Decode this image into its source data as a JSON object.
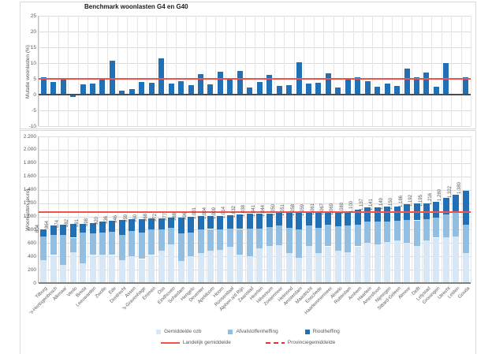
{
  "title": "Benchmark woonlasten G4 en G40",
  "chart_data": [
    {
      "type": "bar",
      "title": "Benchmark woonlasten G4 en G40",
      "ylabel": "Mutatie woonlasten  (%)",
      "ylim": [
        -10,
        25
      ],
      "yticks": [
        25,
        20,
        15,
        10,
        5,
        0,
        -5,
        -10
      ],
      "grid": true,
      "bar_color": "#2170b5",
      "categories": [
        "Tilburg",
        "'s-Hertogenbosch",
        "Alkmaar",
        "Venlo",
        "Breda",
        "Leeuwarden",
        "Zwolle",
        "Ede",
        "Dordrecht",
        "Assen",
        "'s-Gravenhage",
        "Emmen",
        "Oss",
        "Eindhoven",
        "Schiedam",
        "Hengelo",
        "Deventer",
        "Apeldoorn",
        "Hoorn",
        "Roosendaal",
        "Alphen a/d Rijn",
        "Zaanstad",
        "Heerlen",
        "Hilversum",
        "Zoetermeer",
        "Helmond",
        "Amsterdam",
        "Maastricht",
        "Enschede",
        "Haarlemmermeer",
        "Almelo",
        "Rotterdam",
        "Arnhem",
        "Haarlem",
        "Amersfoort",
        "Nijmegen",
        "Sittard-Geleen",
        "Almere",
        "Delft",
        "Lelystad",
        "Groningen",
        "Utrecht",
        "Leiden",
        "Gouda"
      ],
      "values": [
        5.4,
        4.0,
        4.8,
        -0.8,
        3.3,
        3.4,
        4.9,
        10.8,
        1.3,
        1.8,
        3.9,
        3.7,
        11.4,
        3.6,
        4.2,
        2.9,
        6.5,
        3.2,
        7.2,
        4.7,
        7.4,
        2.3,
        4.0,
        6.3,
        2.8,
        3.0,
        10.3,
        3.5,
        3.8,
        6.8,
        2.3,
        4.8,
        5.4,
        4.2,
        2.4,
        3.5,
        2.7,
        8.2,
        5.4,
        7.0,
        2.6,
        9.9,
        0,
        5.6
      ],
      "reference_lines": [
        {
          "name": "Landelijk gemiddelde",
          "value": 5.1,
          "style": "solid",
          "color": "#f0524c"
        },
        {
          "name": "Provinciegemiddelde",
          "value": 6.1,
          "style": "dashed",
          "color": "#e9302a"
        }
      ]
    },
    {
      "type": "bar",
      "stacked": true,
      "ylabel": "Woonlasten  (euro)",
      "ylim": [
        0,
        2200
      ],
      "ytick_labels": [
        "2.200",
        "2.000",
        "1.800",
        "1.600",
        "1.400",
        "1.200",
        "1.000",
        "800",
        "600",
        "400",
        "200",
        "0"
      ],
      "yticks": [
        2200,
        2000,
        1800,
        1600,
        1400,
        1200,
        1000,
        800,
        600,
        400,
        200,
        0
      ],
      "grid": true,
      "categories": [
        "Tilburg",
        "'s-Hertogenbosch",
        "Alkmaar",
        "Venlo",
        "Breda",
        "Leeuwarden",
        "Zwolle",
        "Ede",
        "Dordrecht",
        "Assen",
        "'s-Gravenhage",
        "Emmen",
        "Oss",
        "Eindhoven",
        "Schiedam",
        "Hengelo",
        "Deventer",
        "Apeldoorn",
        "Hoorn",
        "Roosendaal",
        "Alphen a/d Rijn",
        "Zaanstad",
        "Heerlen",
        "Hilversum",
        "Zoetermeer",
        "Helmond",
        "Amsterdam",
        "Maastricht",
        "Enschede",
        "Haarlemmermeer",
        "Almelo",
        "Rotterdam",
        "Arnhem",
        "Haarlem",
        "Amersfoort",
        "Nijmegen",
        "Sittard-Geleen",
        "Almere",
        "Delft",
        "Lelystad",
        "Groningen",
        "Utrecht",
        "Leiden",
        "Gouda"
      ],
      "totals": [
        804,
        864,
        874,
        882,
        891,
        898,
        920,
        936,
        946,
        959,
        960,
        968,
        972,
        977,
        988,
        996,
        1001,
        1004,
        1009,
        1014,
        1032,
        1038,
        1041,
        1044,
        1050,
        1051,
        1058,
        1059,
        1061,
        1067,
        1069,
        1080,
        1100,
        1137,
        1141,
        1149,
        1150,
        1186,
        1192,
        1195,
        1216,
        1280,
        1322,
        1380
      ],
      "total_labels": [
        "804",
        "864",
        "874",
        "882",
        "891",
        "898",
        "920",
        "936",
        "946",
        "959",
        "960",
        "968",
        "972",
        "977",
        "988",
        "996",
        "1.001",
        "1.004",
        "1.009",
        "1.014",
        "1.032",
        "1.038",
        "1.041",
        "1.044",
        "1.050",
        "1.051",
        "1.058",
        "1.059",
        "1.061",
        "1.067",
        "1.069",
        "1.080",
        "1.100",
        "1.137",
        "1.141",
        "1.149",
        "1.150",
        "1.186",
        "1.192",
        "1.195",
        "1.216",
        "1.280",
        "1.322",
        "1.380"
      ],
      "series": [
        {
          "name": "Gemiddelde ozb",
          "color": "#d7e7f5",
          "values": [
            340,
            420,
            270,
            460,
            300,
            420,
            430,
            420,
            340,
            400,
            360,
            420,
            480,
            580,
            330,
            400,
            450,
            480,
            500,
            540,
            430,
            400,
            520,
            560,
            570,
            450,
            380,
            560,
            450,
            550,
            480,
            460,
            550,
            600,
            580,
            620,
            640,
            600,
            560,
            640,
            680,
            690,
            700,
            450
          ]
        },
        {
          "name": "Afvalstoffenheffing",
          "color": "#92bee2",
          "values": [
            360,
            300,
            450,
            220,
            460,
            320,
            330,
            350,
            380,
            380,
            400,
            380,
            320,
            250,
            420,
            360,
            350,
            330,
            300,
            280,
            380,
            420,
            300,
            280,
            290,
            380,
            420,
            300,
            380,
            320,
            370,
            400,
            330,
            320,
            340,
            300,
            290,
            350,
            380,
            320,
            300,
            340,
            350,
            420
          ]
        },
        {
          "name": "Rioolheffing",
          "color": "#2170b5",
          "values": [
            104,
            144,
            154,
            202,
            131,
            158,
            160,
            166,
            226,
            179,
            200,
            168,
            172,
            147,
            238,
            236,
            201,
            194,
            209,
            194,
            222,
            218,
            221,
            204,
            190,
            221,
            258,
            199,
            231,
            197,
            219,
            220,
            220,
            217,
            221,
            229,
            220,
            236,
            252,
            235,
            236,
            250,
            272,
            510
          ]
        }
      ],
      "reference_lines": [
        {
          "name": "Landelijk gemiddelde",
          "value": 1065,
          "style": "solid",
          "color": "#f0524c"
        },
        {
          "name": "Provinciegemiddelde",
          "value": 1080,
          "style": "dashed",
          "color": "#e9302a"
        }
      ]
    }
  ],
  "legend": {
    "series": [
      {
        "label": "Gemiddelde ozb",
        "color": "#d7e7f5"
      },
      {
        "label": "Afvalstoffenheffing",
        "color": "#92bee2"
      },
      {
        "label": "Rioolheffing",
        "color": "#2170b5"
      }
    ],
    "lines": [
      {
        "label": "Landelijk gemiddelde",
        "style": "solid",
        "color": "#f0524c"
      },
      {
        "label": "Provinciegemiddelde",
        "style": "dashed",
        "color": "#e9302a"
      }
    ]
  }
}
